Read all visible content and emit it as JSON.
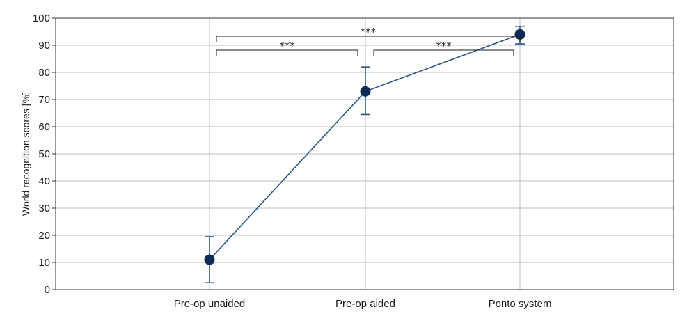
{
  "chart_data": {
    "type": "line",
    "categories": [
      "Pre-op unaided",
      "Pre-op aided",
      "Ponto system"
    ],
    "series": [
      {
        "values": [
          11,
          73,
          94
        ],
        "error_low": [
          2.5,
          64.5,
          90.5
        ],
        "error_high": [
          19.5,
          82,
          97
        ]
      }
    ],
    "ylabel": "World recognition scores [%]",
    "xlabel": "",
    "ylim": [
      0,
      100
    ],
    "yticks": [
      0,
      10,
      20,
      30,
      40,
      50,
      60,
      70,
      80,
      90,
      100
    ],
    "grid": true,
    "significance": [
      {
        "from": 0,
        "to": 2,
        "label": "***"
      },
      {
        "from": 0,
        "to": 1,
        "label": "***"
      },
      {
        "from": 1,
        "to": 2,
        "label": "***"
      }
    ],
    "colors": {
      "series": "#2b5484",
      "marker": "#0d2b55",
      "grid": "#bfbfbf",
      "axis": "#333333"
    }
  }
}
